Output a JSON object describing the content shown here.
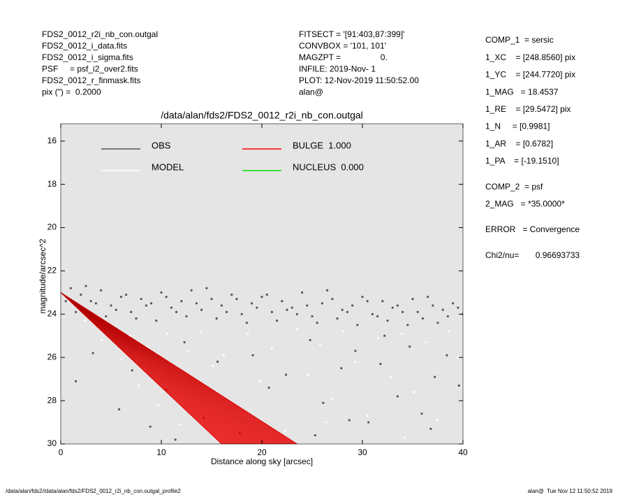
{
  "header": {
    "left": [
      "FDS2_0012_r2i_nb_con.outgal",
      "FDS2_0012_i_data.fits",
      "FDS2_0012_i_sigma.fits",
      "PSF     = psf_i2_over2.fits",
      "FDS2_0012_r_finmask.fits",
      "pix (\") =  0.2000"
    ],
    "middle": [
      "FITSECT = '[91:403,87:399]'",
      "CONVBOX = '101, 101'",
      "MAGZPT =                 0.",
      "INFILE: 2019-Nov- 1",
      "PLOT: 12-Nov-2019 11:50:52.00",
      "alan@"
    ]
  },
  "parameters": [
    [
      "COMP_1  = sersic",
      "1_XC    = [248.8560] pix",
      "1_YC    = [244.7720] pix",
      "1_MAG   = 18.4537",
      "1_RE    = [29.5472] pix",
      "1_N     = [0.9981]",
      "1_AR    = [0.6782]",
      "1_PA    = [-19.1510]"
    ],
    [
      "COMP_2  = psf",
      "2_MAG   = *35.0000*"
    ],
    [
      "ERROR   = Convergence"
    ],
    [
      "Chi2/nu=       0.96693733"
    ]
  ],
  "footer": {
    "left": "/data/alan/fds2//data/alan/fds2/FDS2_0012_r2i_nb_con.outgal_profile2",
    "right": "alan@  Tue Nov 12 11:50:52 2019"
  },
  "chart_data": {
    "type": "scatter",
    "title": "/data/alan/fds2/FDS2_0012_r2i_nb_con.outgal",
    "xlabel": "Distance along sky [arcsec]",
    "ylabel": "magnitude/arcsec^2",
    "xlim": [
      0,
      40
    ],
    "ylim": [
      30,
      15.2
    ],
    "xticks": [
      0,
      10,
      20,
      30,
      40
    ],
    "yticks": [
      16,
      18,
      20,
      22,
      24,
      26,
      28,
      30
    ],
    "series": [
      {
        "name": "OBS",
        "color": "#555555",
        "style": "points",
        "x": [
          1,
          2,
          3,
          4,
          5,
          6,
          7,
          8,
          9,
          10,
          11,
          12,
          13,
          14,
          15,
          16,
          17,
          18,
          19,
          20,
          21,
          22,
          23,
          24,
          25,
          26,
          27,
          28,
          29,
          30,
          31,
          32,
          33,
          34,
          35,
          36,
          37,
          38,
          39,
          40,
          0.5,
          1.5,
          2.5,
          3.5,
          4.5,
          5.5,
          6.5,
          7.5,
          8.5,
          9.5,
          10.5,
          11.5,
          12.5,
          13.5,
          14.5,
          15.5,
          16.5,
          17.5,
          18.5,
          19.5,
          20.5,
          21.5,
          22.5,
          23.5,
          24.5,
          25.5,
          26.5,
          27.5,
          28.5,
          29.5,
          30.5,
          31.5,
          32.5,
          33.5,
          34.5,
          35.5,
          36.5,
          37.5,
          38.5,
          39.5,
          1.5,
          3.2,
          5.8,
          7.1,
          8.9,
          10.5,
          12.3,
          14.2,
          15.6,
          17.8,
          19.1,
          20.7,
          22.4,
          24.8,
          26.1,
          27.9,
          29.3,
          30.6,
          31.8,
          33.5,
          34.7,
          35.9,
          37.2,
          38.4,
          39.6,
          25.3,
          28.7,
          32.2,
          36.8,
          11.4
        ],
        "y": [
          22.8,
          23.1,
          23.4,
          22.9,
          23.6,
          23.2,
          23.9,
          23.3,
          23.5,
          23.0,
          23.7,
          23.4,
          22.9,
          23.8,
          23.3,
          23.6,
          23.1,
          24.0,
          23.5,
          23.2,
          23.9,
          23.4,
          23.7,
          23.0,
          24.1,
          23.5,
          23.3,
          23.8,
          23.6,
          23.2,
          24.0,
          23.4,
          23.7,
          23.9,
          23.3,
          24.2,
          23.6,
          23.8,
          23.5,
          24.0,
          23.4,
          23.9,
          22.7,
          23.5,
          24.1,
          23.8,
          23.1,
          24.2,
          23.6,
          24.3,
          23.2,
          23.9,
          24.1,
          23.5,
          22.8,
          24.2,
          23.9,
          23.3,
          24.4,
          23.7,
          23.1,
          24.3,
          23.8,
          24.0,
          23.6,
          24.4,
          22.9,
          24.2,
          23.9,
          24.5,
          23.4,
          24.1,
          24.3,
          23.6,
          24.5,
          23.9,
          23.2,
          24.4,
          24.1,
          23.7,
          27.1,
          25.8,
          28.4,
          26.6,
          29.2,
          27.5,
          25.3,
          28.8,
          26.2,
          29.5,
          25.9,
          27.4,
          26.8,
          25.2,
          28.1,
          26.5,
          25.7,
          29.0,
          26.3,
          27.8,
          25.5,
          28.6,
          26.9,
          25.9,
          27.3,
          29.6,
          28.9,
          25.0,
          29.3,
          29.8
        ]
      },
      {
        "name": "MODEL",
        "color": "#ffffff",
        "style": "points",
        "x": [
          0.8,
          1.6,
          2.4,
          3.3,
          4.1,
          5.2,
          6.0,
          6.9,
          7.8,
          8.6,
          9.7,
          10.6,
          11.8,
          12.7,
          13.9,
          15.1,
          16.2,
          17.4,
          18.6,
          19.8,
          21.0,
          22.3,
          23.5,
          24.6,
          25.8,
          27.0,
          28.1,
          29.3,
          30.5,
          31.6,
          32.8,
          33.9,
          35.1,
          36.3,
          37.4,
          38.6,
          39.5,
          14.5,
          26.4,
          34.2
        ],
        "y": [
          23.4,
          23.6,
          24.3,
          24.0,
          25.2,
          24.6,
          26.1,
          25.0,
          27.3,
          25.5,
          28.2,
          24.9,
          29.1,
          25.7,
          24.8,
          26.4,
          25.9,
          28.5,
          24.9,
          27.1,
          25.6,
          29.4,
          24.7,
          26.8,
          25.4,
          27.9,
          24.8,
          26.2,
          28.7,
          25.1,
          26.9,
          24.9,
          27.6,
          25.3,
          28.9,
          24.8,
          26.0,
          27.8,
          29.0,
          29.7
        ]
      },
      {
        "name": "BULGE  1.000",
        "color": "#ff0000",
        "style": "band",
        "x": [
          0,
          16.0,
          23.5
        ],
        "y": [
          23.0,
          30,
          30
        ]
      },
      {
        "name": "NUCLEUS  0.000",
        "color": "#00dd00",
        "style": "band",
        "x": [],
        "y": []
      }
    ]
  }
}
